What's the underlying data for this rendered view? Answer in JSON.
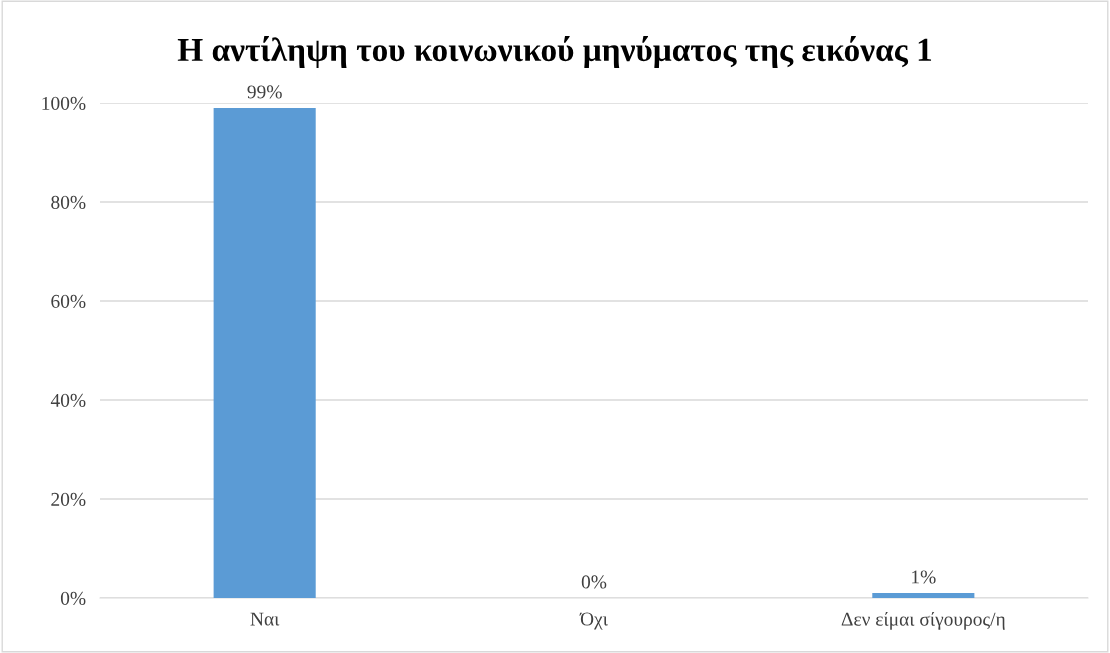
{
  "chart_data": {
    "type": "bar",
    "title": "Η αντίληψη του κοινωνικού μηνύματος της εικόνας 1",
    "categories": [
      "Ναι",
      "Όχι",
      "Δεν είμαι σίγουρος/η"
    ],
    "values": [
      99,
      0,
      1
    ],
    "value_labels": [
      "99%",
      "0%",
      "1%"
    ],
    "color": "#5b9bd5",
    "ylim": [
      0,
      100
    ],
    "yticks": [
      {
        "value": 0,
        "label": "0%"
      },
      {
        "value": 20,
        "label": "20%"
      },
      {
        "value": 40,
        "label": "40%"
      },
      {
        "value": 60,
        "label": "60%"
      },
      {
        "value": 80,
        "label": "80%"
      },
      {
        "value": 100,
        "label": "100%"
      }
    ],
    "grid": "y"
  }
}
